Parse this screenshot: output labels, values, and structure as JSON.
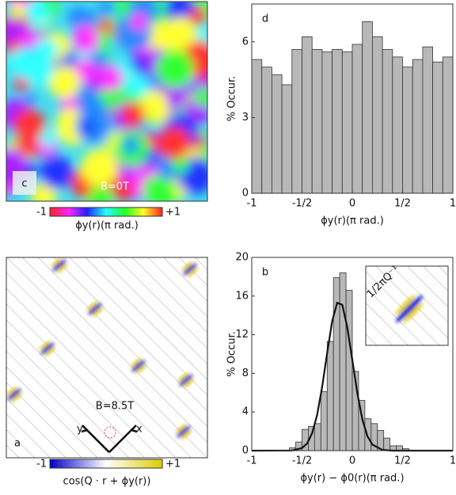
{
  "chart_data": [
    {
      "type": "image",
      "panel_label": "c",
      "annotation": "B=0T",
      "colorbar": {
        "clim": [
          -1,
          1
        ],
        "ticks": [
          -1,
          {
            "value": 1,
            "label": "+1"
          }
        ],
        "label": "ϕy(r)(π rad.)"
      }
    },
    {
      "type": "histogram",
      "panel_label": "d",
      "bins": [
        -1,
        -0.9,
        -0.8,
        -0.7,
        -0.6,
        -0.5,
        -0.4,
        -0.3,
        -0.2,
        -0.1,
        0,
        0.1,
        0.2,
        0.3,
        0.4,
        0.5,
        0.6,
        0.7,
        0.8,
        0.9,
        1
      ],
      "values": [
        5.3,
        5.0,
        4.7,
        4.3,
        5.7,
        6.2,
        5.7,
        5.6,
        5.7,
        5.6,
        5.9,
        6.8,
        6.2,
        5.7,
        5.4,
        5.0,
        5.3,
        5.8,
        5.2,
        5.4
      ],
      "color": "#b8b8b8",
      "xlim": [
        -1,
        1
      ],
      "xticks": [
        -1,
        {
          "value": -0.5,
          "label": "-1/2"
        },
        0,
        {
          "value": 0.5,
          "label": "1/2"
        },
        1
      ],
      "ylim": [
        0,
        7.5
      ],
      "yticks": [
        0,
        3,
        6
      ],
      "xlabel": "ϕy(r)(π rad.)",
      "ylabel": "% Occur."
    },
    {
      "type": "image",
      "panel_label": "a",
      "annotation": "B=8.5T",
      "axis_x": "x",
      "axis_y": "y",
      "colorbar": {
        "clim": [
          -1,
          1
        ],
        "ticks": [
          -1,
          {
            "value": 1,
            "label": "+1"
          }
        ],
        "label": "cos(Q · r + ϕy(r))"
      }
    },
    {
      "type": "histogram",
      "panel_label": "b",
      "bins": [
        -1,
        -0.9375,
        -0.875,
        -0.8125,
        -0.75,
        -0.6875,
        -0.625,
        -0.5625,
        -0.5,
        -0.4375,
        -0.375,
        -0.3125,
        -0.25,
        -0.1875,
        -0.125,
        -0.0625,
        0,
        0.0625,
        0.125,
        0.1875,
        0.25,
        0.3125,
        0.375,
        0.4375,
        0.5,
        0.5625,
        0.625,
        0.6875,
        0.75,
        0.8125,
        0.875,
        0.9375,
        1
      ],
      "values": [
        0,
        0,
        0,
        0,
        0,
        0,
        0.3,
        0.9,
        2.2,
        2.5,
        2.8,
        6.1,
        11.3,
        17.9,
        18.4,
        16.6,
        8.2,
        5.2,
        3.3,
        2.8,
        2.1,
        1.3,
        0.5,
        0.5,
        0.2,
        0,
        0,
        0,
        0,
        0,
        0,
        0
      ],
      "color": "#b8b8b8",
      "fit": {
        "x": [
          -1,
          -0.6,
          -0.5,
          -0.45,
          -0.4,
          -0.35,
          -0.3,
          -0.25,
          -0.2,
          -0.15,
          -0.1,
          -0.05,
          0,
          0.05,
          0.1,
          0.15,
          0.2,
          0.3,
          0.4,
          1
        ],
        "values": [
          0,
          0.02,
          0.27,
          0.75,
          1.79,
          3.7,
          6.59,
          10.12,
          13.4,
          15.3,
          15.1,
          12.8,
          9.4,
          5.94,
          3.24,
          1.52,
          0.62,
          0.07,
          0,
          0
        ],
        "color": "#111111"
      },
      "xlim": [
        -1,
        1
      ],
      "xticks": [
        -1,
        {
          "value": -0.5,
          "label": "-1/2"
        },
        0,
        {
          "value": 0.5,
          "label": "1/2"
        },
        1
      ],
      "ylim": [
        0,
        20
      ],
      "yticks": [
        0,
        4,
        8,
        12,
        16,
        20
      ],
      "xlabel": "ϕy(r) − ϕ0(r)(π rad.)",
      "ylabel": "% Occur.",
      "inset_label": "1/2πQ⁻¹"
    }
  ]
}
